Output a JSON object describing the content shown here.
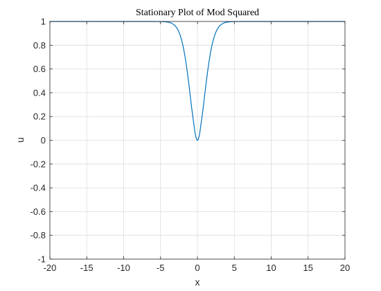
{
  "chart_data": {
    "type": "line",
    "title": "Stationary Plot of Mod Squared",
    "xlabel": "x",
    "ylabel": "u",
    "xlim": [
      -20,
      20
    ],
    "ylim": [
      -1,
      1
    ],
    "grid": true,
    "legend": "none",
    "x_ticks": [
      "-20",
      "-15",
      "-10",
      "-5",
      "0",
      "5",
      "10",
      "15",
      "20"
    ],
    "y_ticks": [
      "1",
      "0.8",
      "0.6",
      "0.4",
      "0.2",
      "0",
      "-0.2",
      "-0.4",
      "-0.6",
      "-0.8",
      "-1"
    ],
    "series": [
      {
        "color": "#0072BD",
        "x": [
          -20,
          -10,
          -6,
          -5,
          -4.5,
          -4,
          -3.5,
          -3,
          -2.75,
          -2.5,
          -2.25,
          -2,
          -1.75,
          -1.5,
          -1.25,
          -1,
          -0.75,
          -0.5,
          -0.25,
          0,
          0.25,
          0.5,
          0.75,
          1,
          1.25,
          1.5,
          1.75,
          2,
          2.25,
          2.5,
          2.75,
          3,
          3.5,
          4,
          4.5,
          5,
          6,
          10,
          20
        ],
        "y": [
          1,
          1,
          1,
          0.999,
          0.998,
          0.994,
          0.985,
          0.962,
          0.941,
          0.91,
          0.866,
          0.807,
          0.729,
          0.631,
          0.516,
          0.388,
          0.258,
          0.144,
          0.04,
          0,
          0.04,
          0.144,
          0.258,
          0.388,
          0.516,
          0.631,
          0.729,
          0.807,
          0.866,
          0.91,
          0.941,
          0.962,
          0.985,
          0.994,
          0.998,
          0.999,
          1,
          1,
          1
        ]
      }
    ]
  }
}
